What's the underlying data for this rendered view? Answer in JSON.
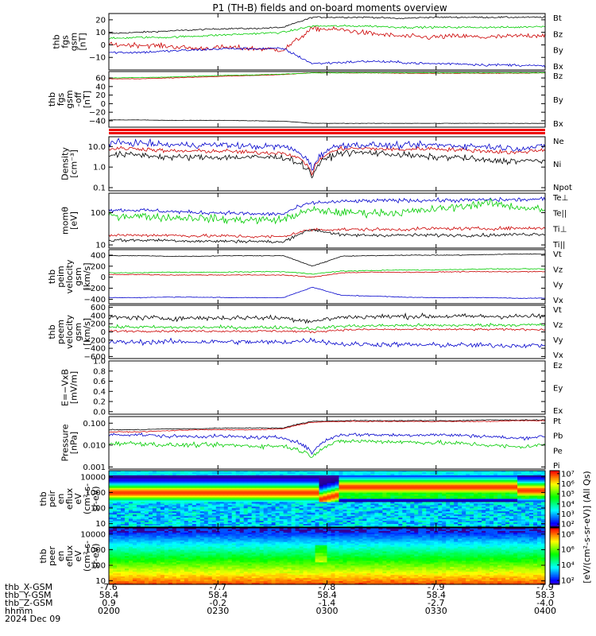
{
  "title": "P1 (TH-B) fields and on-board moments overview",
  "chart_data": {
    "type": "line",
    "time_axis": {
      "tick_labels": [
        "0200",
        "0230",
        "0300",
        "0330",
        "0400"
      ],
      "row_labels": [
        "thb_X-GSM",
        "thb_Y-GSM",
        "thb_Z-GSM",
        "hhmm",
        "2024 Dec 09"
      ],
      "rows": {
        "x_gsm": [
          "-7.6",
          "-7.7",
          "-7.8",
          "-7.9",
          "-7.9"
        ],
        "y_gsm": [
          "58.4",
          "58.4",
          "58.4",
          "58.4",
          "58.3"
        ],
        "z_gsm": [
          "0.9",
          "-0.2",
          "-1.4",
          "-2.7",
          "-4.0"
        ]
      }
    },
    "panels": [
      {
        "id": "fgs-gsm",
        "ylabel": [
          "thb",
          "fgs",
          "gsm",
          "[nT]"
        ],
        "scale": "linear",
        "ylim": [
          -20,
          25
        ],
        "ticks": [
          20,
          10,
          0,
          -10
        ],
        "tick_labels": [
          "20",
          "10",
          "0",
          "−10"
        ],
        "series": [
          {
            "name": "Bt",
            "color": "#000000",
            "trend": [
              9,
              10,
              11,
              12,
              13,
              13,
              14,
              22,
              22,
              22,
              21,
              22,
              22,
              22,
              22,
              22
            ],
            "noise": 0.6
          },
          {
            "name": "Bz",
            "color": "#cc0000",
            "trend": [
              0,
              0,
              -1,
              -3,
              -2,
              -3,
              -4,
              13,
              12,
              9,
              7,
              6,
              7,
              6,
              7,
              8
            ],
            "noise": 2.0
          },
          {
            "name": "By",
            "color": "#00cc00",
            "trend": [
              5,
              6,
              6,
              7,
              8,
              9,
              10,
              15,
              15,
              15,
              14,
              14,
              14,
              14,
              14,
              15
            ],
            "noise": 0.8
          },
          {
            "name": "Bx",
            "color": "#0000cc",
            "trend": [
              -6,
              -6,
              -5,
              -4,
              -3,
              -3,
              -3,
              -15,
              -14,
              -13,
              -14,
              -15,
              -15,
              -16,
              -16,
              -17
            ],
            "noise": 1.0
          }
        ]
      },
      {
        "id": "fgs-gsm-offset",
        "ylabel": [
          "thb",
          "fgs",
          "gsm",
          "-off",
          "[nT]"
        ],
        "scale": "linear",
        "ylim": [
          -55,
          75
        ],
        "ticks": [
          60,
          40,
          20,
          0,
          -20,
          -40
        ],
        "tick_labels": [
          "60",
          "40",
          "20",
          "0",
          "−20",
          "−40"
        ],
        "series": [
          {
            "name": "Bz",
            "color": "#cc0000",
            "trend": [
              58,
              58,
              60,
              62,
              64,
              66,
              68,
              72,
              72,
              72,
              71,
              71,
              71,
              71,
              71,
              72
            ],
            "noise": 0.6
          },
          {
            "name": "By",
            "color": "#00cc00",
            "trend": [
              60,
              61,
              62,
              64,
              66,
              67,
              69,
              72,
              72,
              72,
              72,
              72,
              72,
              72,
              72,
              72
            ],
            "noise": 0.6
          },
          {
            "name": "Bx",
            "color": "#000000",
            "trend": [
              -38,
              -38,
              -39,
              -39,
              -39,
              -40,
              -41,
              -46,
              -46,
              -46,
              -46,
              -46,
              -46,
              -46,
              -46,
              -46
            ],
            "noise": 0.4
          }
        ]
      },
      {
        "id": "density",
        "ylabel": [
          "Density",
          "[cm⁻³]"
        ],
        "scale": "log",
        "ylim": [
          0.07,
          30
        ],
        "ticks": [
          10,
          1,
          0.1
        ],
        "tick_labels": [
          "10.0",
          "1.0",
          "0.1"
        ],
        "series": [
          {
            "name": "Ne",
            "color": "#cc0000",
            "trend": [
              8,
              8,
              6,
              6,
              6,
              5,
              5,
              0.4,
              8,
              8,
              7,
              8,
              7,
              6,
              5,
              7
            ],
            "noise": 0.1
          },
          {
            "name": "Ni",
            "color": "#000000",
            "trend": [
              4,
              4,
              3,
              3,
              3,
              3,
              3,
              0.3,
              5,
              5,
              4,
              3,
              3,
              2,
              2,
              2
            ],
            "noise": 0.15
          },
          {
            "name": "Npot",
            "color": "#0000cc",
            "trend": [
              15,
              15,
              12,
              12,
              12,
              10,
              10,
              0.6,
              12,
              12,
              11,
              12,
              11,
              10,
              8,
              10
            ],
            "noise": 0.15
          }
        ]
      },
      {
        "id": "temperature",
        "ylabel": [
          "momθ",
          "[eV]"
        ],
        "scale": "log",
        "ylim": [
          8,
          400
        ],
        "ticks": [
          100,
          10
        ],
        "tick_labels": [
          "100",
          "10"
        ],
        "series": [
          {
            "name": "Te⊥",
            "color": "#cc0000",
            "trend": [
              20,
              20,
              20,
              19,
              19,
              18,
              18,
              30,
              30,
              30,
              30,
              32,
              32,
              32,
              33,
              33
            ],
            "noise": 0.05
          },
          {
            "name": "Te||",
            "color": "#000000",
            "trend": [
              14,
              14,
              14,
              13,
              13,
              13,
              12,
              30,
              20,
              20,
              20,
              20,
              20,
              20,
              21,
              22
            ],
            "noise": 0.05
          },
          {
            "name": "Ti⊥",
            "color": "#0000cc",
            "trend": [
              120,
              120,
              110,
              100,
              100,
              90,
              90,
              200,
              220,
              230,
              240,
              240,
              240,
              250,
              250,
              260
            ],
            "noise": 0.06
          },
          {
            "name": "Ti||",
            "color": "#00cc00",
            "trend": [
              80,
              80,
              70,
              70,
              60,
              60,
              60,
              120,
              100,
              100,
              100,
              120,
              150,
              200,
              150,
              120
            ],
            "noise": 0.12
          }
        ]
      },
      {
        "id": "peim-velocity",
        "ylabel": [
          "thb",
          "peim",
          "velocity",
          "gsm",
          "[km/s]"
        ],
        "scale": "linear",
        "ylim": [
          -480,
          500
        ],
        "ticks": [
          400,
          200,
          0,
          -200,
          -400
        ],
        "tick_labels": [
          "400",
          "200",
          "0",
          "−200",
          "−400"
        ],
        "series": [
          {
            "name": "Vt",
            "color": "#000000",
            "trend": [
              390,
              390,
              380,
              380,
              390,
              390,
              390,
              200,
              380,
              390,
              400,
              400,
              400,
              410,
              420,
              420
            ],
            "noise": 6
          },
          {
            "name": "Vz",
            "color": "#cc0000",
            "trend": [
              50,
              50,
              40,
              40,
              40,
              40,
              40,
              0,
              80,
              90,
              90,
              90,
              100,
              100,
              100,
              100
            ],
            "noise": 8
          },
          {
            "name": "Vy",
            "color": "#00cc00",
            "trend": [
              80,
              80,
              90,
              90,
              90,
              100,
              100,
              60,
              110,
              120,
              130,
              130,
              140,
              150,
              150,
              150
            ],
            "noise": 8
          },
          {
            "name": "Vx",
            "color": "#0000cc",
            "trend": [
              -370,
              -370,
              -360,
              -360,
              -370,
              -370,
              -370,
              -180,
              -330,
              -340,
              -360,
              -370,
              -370,
              -370,
              -380,
              -380
            ],
            "noise": 6
          }
        ]
      },
      {
        "id": "peem-velocity",
        "ylabel": [
          "thb",
          "peem",
          "velocity",
          "gsm",
          "[km/s]"
        ],
        "scale": "linear",
        "ylim": [
          -650,
          650
        ],
        "ticks": [
          600,
          400,
          200,
          0,
          -200,
          -400,
          -600
        ],
        "tick_labels": [
          "600",
          "400",
          "200",
          "0",
          "−200",
          "−400",
          "−600"
        ],
        "series": [
          {
            "name": "Vt",
            "color": "#000000",
            "trend": [
              350,
              350,
              330,
              340,
              340,
              350,
              340,
              260,
              360,
              370,
              380,
              380,
              380,
              380,
              380,
              380
            ],
            "noise": 60
          },
          {
            "name": "Vz",
            "color": "#cc0000",
            "trend": [
              20,
              20,
              20,
              20,
              20,
              20,
              20,
              0,
              50,
              60,
              60,
              60,
              60,
              60,
              60,
              60
            ],
            "noise": 25
          },
          {
            "name": "Vy",
            "color": "#00cc00",
            "trend": [
              120,
              120,
              110,
              110,
              110,
              110,
              110,
              80,
              140,
              150,
              160,
              160,
              160,
              170,
              170,
              170
            ],
            "noise": 40
          },
          {
            "name": "Vx",
            "color": "#0000cc",
            "trend": [
              -250,
              -250,
              -240,
              -240,
              -240,
              -250,
              -250,
              -200,
              -300,
              -300,
              -310,
              -320,
              -320,
              -330,
              -330,
              -330
            ],
            "noise": 60
          }
        ]
      },
      {
        "id": "efield",
        "ylabel": [
          "E=−VxB",
          "[mV/m]"
        ],
        "scale": "linear",
        "ylim": [
          -0.05,
          1.0
        ],
        "ticks": [
          1.0,
          0.8,
          0.6,
          0.4,
          0.2,
          0.0
        ],
        "tick_labels": [
          "1.0",
          "0.8",
          "0.6",
          "0.4",
          "0.2",
          "0.0"
        ],
        "series": [
          {
            "name": "Ez",
            "color": "#cc0000",
            "trend": [],
            "noise": 0
          },
          {
            "name": "Ey",
            "color": "#00cc00",
            "trend": [],
            "noise": 0
          },
          {
            "name": "Ex",
            "color": "#0000cc",
            "trend": [],
            "noise": 0
          }
        ]
      },
      {
        "id": "pressure",
        "ylabel": [
          "Pressure",
          "[nPa]"
        ],
        "scale": "log",
        "ylim": [
          0.0008,
          0.2
        ],
        "ticks": [
          0.1,
          0.01,
          0.001
        ],
        "tick_labels": [
          "0.100",
          "0.010",
          "0.001"
        ],
        "series": [
          {
            "name": "Pt",
            "color": "#000000",
            "trend": [
              0.05,
              0.05,
              0.055,
              0.055,
              0.06,
              0.06,
              0.06,
              0.12,
              0.13,
              0.13,
              0.13,
              0.13,
              0.13,
              0.14,
              0.14,
              0.14
            ],
            "noise": 0.02
          },
          {
            "name": "Pb",
            "color": "#cc0000",
            "trend": [
              0.04,
              0.04,
              0.045,
              0.05,
              0.05,
              0.05,
              0.055,
              0.11,
              0.12,
              0.12,
              0.12,
              0.12,
              0.12,
              0.12,
              0.13,
              0.13
            ],
            "noise": 0.02
          },
          {
            "name": "Pe",
            "color": "#00cc00",
            "trend": [
              0.012,
              0.012,
              0.01,
              0.01,
              0.01,
              0.009,
              0.009,
              0.003,
              0.015,
              0.015,
              0.014,
              0.013,
              0.012,
              0.01,
              0.008,
              0.01
            ],
            "noise": 0.1
          },
          {
            "name": "Pi",
            "color": "#0000cc",
            "trend": [
              0.03,
              0.03,
              0.025,
              0.025,
              0.025,
              0.022,
              0.022,
              0.004,
              0.03,
              0.03,
              0.028,
              0.03,
              0.028,
              0.025,
              0.02,
              0.025
            ],
            "noise": 0.08
          }
        ]
      },
      {
        "id": "peir-spectrogram",
        "type": "heatmap",
        "ylabel": [
          "thb",
          "peir",
          "en",
          "eflux",
          "eV",
          "(cm²-s-",
          "sr-eV)"
        ],
        "scale": "log",
        "ylim": [
          6,
          25000
        ],
        "ticks": [
          10000,
          1000,
          100,
          10
        ],
        "tick_labels": [
          "10000",
          "1000",
          "100",
          "10"
        ]
      },
      {
        "id": "peer-spectrogram",
        "type": "heatmap",
        "ylabel": [
          "thb",
          "peer",
          "en",
          "eflux",
          "eV",
          "(cm²-s-",
          "sr-eV)"
        ],
        "scale": "log",
        "ylim": [
          6,
          25000
        ],
        "ticks": [
          10000,
          1000,
          100,
          10
        ],
        "tick_labels": [
          "10000",
          "1000",
          "100",
          "10"
        ]
      }
    ],
    "colorbars": [
      {
        "panel": "peir-spectrogram",
        "tick_labels": [
          "10⁷",
          "10⁶",
          "10⁵",
          "10⁴",
          "10³",
          "10²"
        ],
        "ticks": [
          7,
          6,
          5,
          4,
          3,
          2
        ],
        "range": [
          1.7,
          7.3
        ]
      },
      {
        "panel": "peer-spectrogram",
        "tick_labels": [
          "10⁸",
          "10⁶",
          "10⁴",
          "10²"
        ],
        "ticks": [
          8,
          6,
          4,
          2
        ],
        "range": [
          1.5,
          8.8
        ]
      }
    ],
    "colorbar_label": "[eV/(cm²-s-sr-eV)] (All Qs)"
  }
}
